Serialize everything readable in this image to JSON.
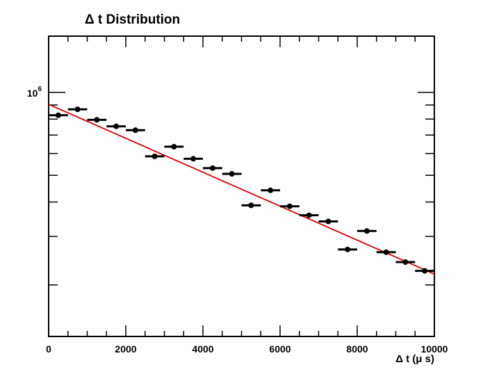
{
  "chart_data": {
    "type": "scatter",
    "title": "Δ t Distribution",
    "xlabel": "Δ t (μ s)",
    "ylabel": "",
    "xlim": [
      0,
      10000
    ],
    "ylim": [
      130000,
      1600000
    ],
    "yscale": "log",
    "grid": false,
    "legend": "none",
    "x_ticks": [
      0,
      2000,
      4000,
      6000,
      8000,
      10000
    ],
    "x_tick_labels": [
      "0",
      "2000",
      "4000",
      "6000",
      "8000",
      "10000"
    ],
    "y_ticks": [
      1000000
    ],
    "y_tick_labels": [
      "10",
      "6"
    ],
    "bin_width": 500,
    "series": [
      {
        "x": [
          250,
          750,
          1250,
          1750,
          2250,
          2750,
          3250,
          3750,
          4250,
          4750,
          5250,
          5750,
          6250,
          6750,
          7250,
          7750,
          8250,
          8750,
          9250,
          9750
        ],
        "y": [
          826000,
          868000,
          795000,
          753000,
          729000,
          586000,
          635000,
          574000,
          531000,
          506000,
          389000,
          441000,
          386000,
          358000,
          340000,
          269000,
          314000,
          263000,
          242000,
          225000
        ]
      }
    ],
    "fit": {
      "type": "exponential",
      "x_range": [
        0,
        10000
      ],
      "y_start": 905000,
      "y_end": 219000,
      "color": "#dd0000"
    },
    "colors": {
      "points": "#000000",
      "fit": "#dd0000"
    }
  }
}
